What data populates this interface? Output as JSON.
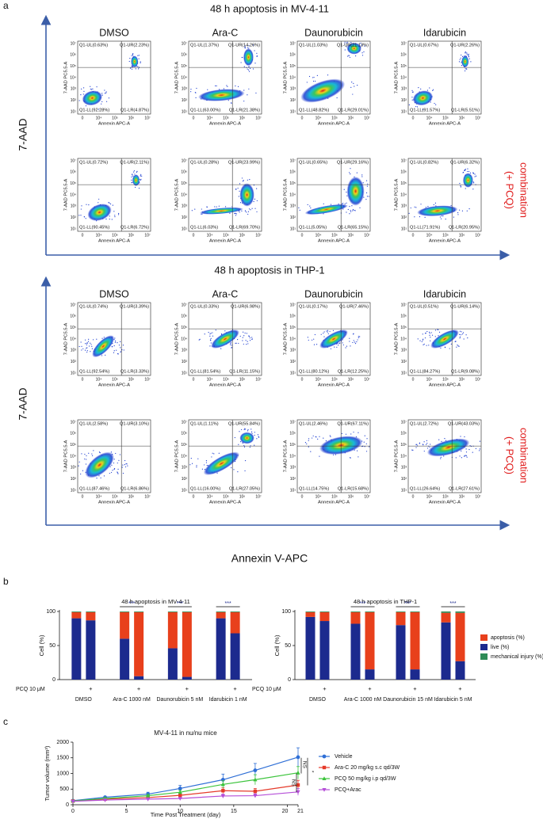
{
  "panel_labels": [
    "a",
    "b",
    "c"
  ],
  "panel_a": {
    "x_axis_label": "Annexin V-APC",
    "columns": [
      "DMSO",
      "Ara-C",
      "Daunorubicin",
      "Idarubicin"
    ],
    "flow_axis": {
      "x_label": "Annexin APC-A",
      "y_label": "7-AAD PC5.5-A",
      "x_ticks": [
        "0",
        "10⁴",
        "10⁵",
        "10⁶",
        "10⁷"
      ],
      "y_ticks": [
        "10¹",
        "10²",
        "10³",
        "10⁴",
        "10⁵",
        "10⁶",
        "10⁷"
      ]
    },
    "blocks": [
      {
        "title": "48 h apoptosis in MV-4-11",
        "y_axis_label": "7-AAD",
        "side_label": [
          "combination",
          "(+ PCQ)"
        ],
        "plots": [
          [
            {
              "UL": "Q1-UL(0.63%)",
              "UR": "Q1-UR(2.23%)",
              "LL": "Q1-LL(92.28%)",
              "LR": "Q1-LR(4.87%)"
            },
            {
              "UL": "Q1-UL(1.37%)",
              "UR": "Q1-UR(14.26%)",
              "LL": "Q1-LL(63.00%)",
              "LR": "Q1-LR(21.38%)"
            },
            {
              "UL": "Q1-UL(1.03%)",
              "UR": "Q1-UR(21.13%)",
              "LL": "Q1-LL(48.82%)",
              "LR": "Q1-LR(29.01%)"
            },
            {
              "UL": "Q1-UL(0.67%)",
              "UR": "Q1-UR(2.26%)",
              "LL": "Q1-LL(91.57%)",
              "LR": "Q1-LR(5.51%)"
            }
          ],
          [
            {
              "UL": "Q1-UL(0.72%)",
              "UR": "Q1-UR(2.11%)",
              "LL": "Q1-LL(90.45%)",
              "LR": "Q1-LR(6.72%)"
            },
            {
              "UL": "Q1-UL(0.28%)",
              "UR": "Q1-UR(23.99%)",
              "LL": "Q1-LL(6.03%)",
              "LR": "Q1-LR(69.70%)"
            },
            {
              "UL": "Q1-UL(0.65%)",
              "UR": "Q1-UR(29.16%)",
              "LL": "Q1-LL(5.05%)",
              "LR": "Q1-LR(65.15%)"
            },
            {
              "UL": "Q1-UL(0.82%)",
              "UR": "Q1-UR(6.32%)",
              "LL": "Q1-LL(71.91%)",
              "LR": "Q1-LR(20.95%)"
            }
          ]
        ]
      },
      {
        "title": "48 h apoptosis in THP-1",
        "y_axis_label": "7-AAD",
        "side_label": [
          "combination",
          "(+ PCQ)"
        ],
        "plots": [
          [
            {
              "UL": "Q1-UL(0.74%)",
              "UR": "Q1-UR(3.39%)",
              "LL": "Q1-LL(92.54%)",
              "LR": "Q1-LR(3.33%)"
            },
            {
              "UL": "Q1-UL(0.33%)",
              "UR": "Q1-UR(6.98%)",
              "LL": "Q1-LL(81.54%)",
              "LR": "Q1-LR(11.15%)"
            },
            {
              "UL": "Q1-UL(0.17%)",
              "UR": "Q1-UR(7.46%)",
              "LL": "Q1-LL(80.12%)",
              "LR": "Q1-LR(12.25%)"
            },
            {
              "UL": "Q1-UL(0.51%)",
              "UR": "Q1-UR(6.14%)",
              "LL": "Q1-LL(84.27%)",
              "LR": "Q1-LR(9.08%)"
            }
          ],
          [
            {
              "UL": "Q1-UL(2.58%)",
              "UR": "Q1-UR(3.10%)",
              "LL": "Q1-LL(87.46%)",
              "LR": "Q1-LR(6.86%)"
            },
            {
              "UL": "Q1-UL(1.11%)",
              "UR": "Q1-UR(55.84%)",
              "LL": "Q1-LL(16.00%)",
              "LR": "Q1-LR(27.05%)"
            },
            {
              "UL": "Q1-UL(2.46%)",
              "UR": "Q1-UR(67.11%)",
              "LL": "Q1-LL(14.75%)",
              "LR": "Q1-LR(15.68%)"
            },
            {
              "UL": "Q1-UL(2.72%)",
              "UR": "Q1-UR(43.03%)",
              "LL": "Q1-LL(26.64%)",
              "LR": "Q1-LR(27.61%)"
            }
          ]
        ]
      }
    ]
  },
  "chart_data": [
    {
      "type": "stacked_bar",
      "title": "48 h apoptosis in MV-4-11",
      "y_label": "Cell (%)",
      "ylim": [
        0,
        100
      ],
      "yticks": [
        0,
        50,
        100
      ],
      "groups": [
        "DMSO",
        "Ara-C 1000 nM",
        "Daunorubicin 5 nM",
        "Idarubicin 1 nM"
      ],
      "pcq_label": "PCQ 10 μM",
      "pcq": [
        null,
        "+",
        null,
        "+",
        null,
        "+",
        null,
        "+"
      ],
      "significance": [
        null,
        "***",
        "***",
        "***"
      ],
      "series": [
        {
          "name": "apoptosis (%)",
          "color": "#e8401c",
          "values": [
            9,
            12,
            39,
            94,
            53,
            95,
            9,
            31
          ]
        },
        {
          "name": "live (%)",
          "color": "#1c2a8e",
          "values": [
            90,
            87,
            60,
            5,
            46,
            4,
            90,
            68
          ]
        },
        {
          "name": "mechanical injury (%)",
          "color": "#2e8b57",
          "values": [
            1,
            1,
            1,
            1,
            1,
            1,
            1,
            1
          ]
        }
      ],
      "legend": false
    },
    {
      "type": "stacked_bar",
      "title": "48 h apoptosis in THP-1",
      "y_label": "Cell (%)",
      "ylim": [
        0,
        100
      ],
      "yticks": [
        0,
        50,
        100
      ],
      "groups": [
        "DMSO",
        "Ara-C 1000 nM",
        "Daunorubicin 15 nM",
        "Idarubicin 5 nM"
      ],
      "pcq_label": "PCQ 10 μM",
      "pcq": [
        null,
        "+",
        null,
        "+",
        null,
        "+",
        null,
        "+"
      ],
      "significance": [
        null,
        "***",
        "***",
        "***"
      ],
      "series": [
        {
          "name": "apoptosis (%)",
          "color": "#e8401c",
          "values": [
            7,
            13,
            17,
            84,
            19,
            84,
            14,
            71
          ]
        },
        {
          "name": "live (%)",
          "color": "#1c2a8e",
          "values": [
            92,
            86,
            82,
            15,
            80,
            15,
            84,
            27
          ]
        },
        {
          "name": "mechanical injury (%)",
          "color": "#2e8b57",
          "values": [
            1,
            1,
            1,
            1,
            1,
            1,
            2,
            2
          ]
        }
      ],
      "legend": "right"
    },
    {
      "type": "line",
      "title": "MV-4-11 in nu/nu mice",
      "y_label": "Tumor volume (mm³)",
      "x_label": "Time Post Treatment (day)",
      "x": [
        0,
        3,
        7,
        10,
        14,
        17,
        21
      ],
      "xlim": [
        0,
        21
      ],
      "xticks": [
        0,
        5,
        10,
        15,
        20,
        21
      ],
      "ylim": [
        0,
        2000
      ],
      "yticks": [
        0,
        500,
        1000,
        1500,
        2000
      ],
      "series": [
        {
          "name": "Vehicle",
          "color": "#2f6fd6",
          "marker": "circle",
          "values": [
            130,
            240,
            340,
            520,
            800,
            1100,
            1520
          ],
          "errors": [
            20,
            30,
            60,
            100,
            180,
            220,
            300
          ]
        },
        {
          "name": "Ara-C 20 mg/kg s.c qd/3W",
          "color": "#e53a2a",
          "marker": "square",
          "values": [
            120,
            180,
            230,
            300,
            450,
            430,
            630
          ],
          "errors": [
            10,
            20,
            30,
            50,
            90,
            90,
            150
          ]
        },
        {
          "name": "PCQ 50 mg/kg i.p qd/3W",
          "color": "#3cc43c",
          "marker": "triangle",
          "values": [
            125,
            200,
            290,
            400,
            650,
            800,
            1020
          ],
          "errors": [
            15,
            25,
            40,
            60,
            120,
            160,
            200
          ]
        },
        {
          "name": "PCQ+Arac",
          "color": "#b54fd8",
          "marker": "triangle-down",
          "values": [
            110,
            150,
            180,
            200,
            280,
            290,
            410
          ],
          "errors": [
            10,
            15,
            20,
            30,
            60,
            60,
            110
          ]
        }
      ],
      "annotations": [
        "NS",
        "NS",
        "*"
      ],
      "legend": "right"
    }
  ]
}
